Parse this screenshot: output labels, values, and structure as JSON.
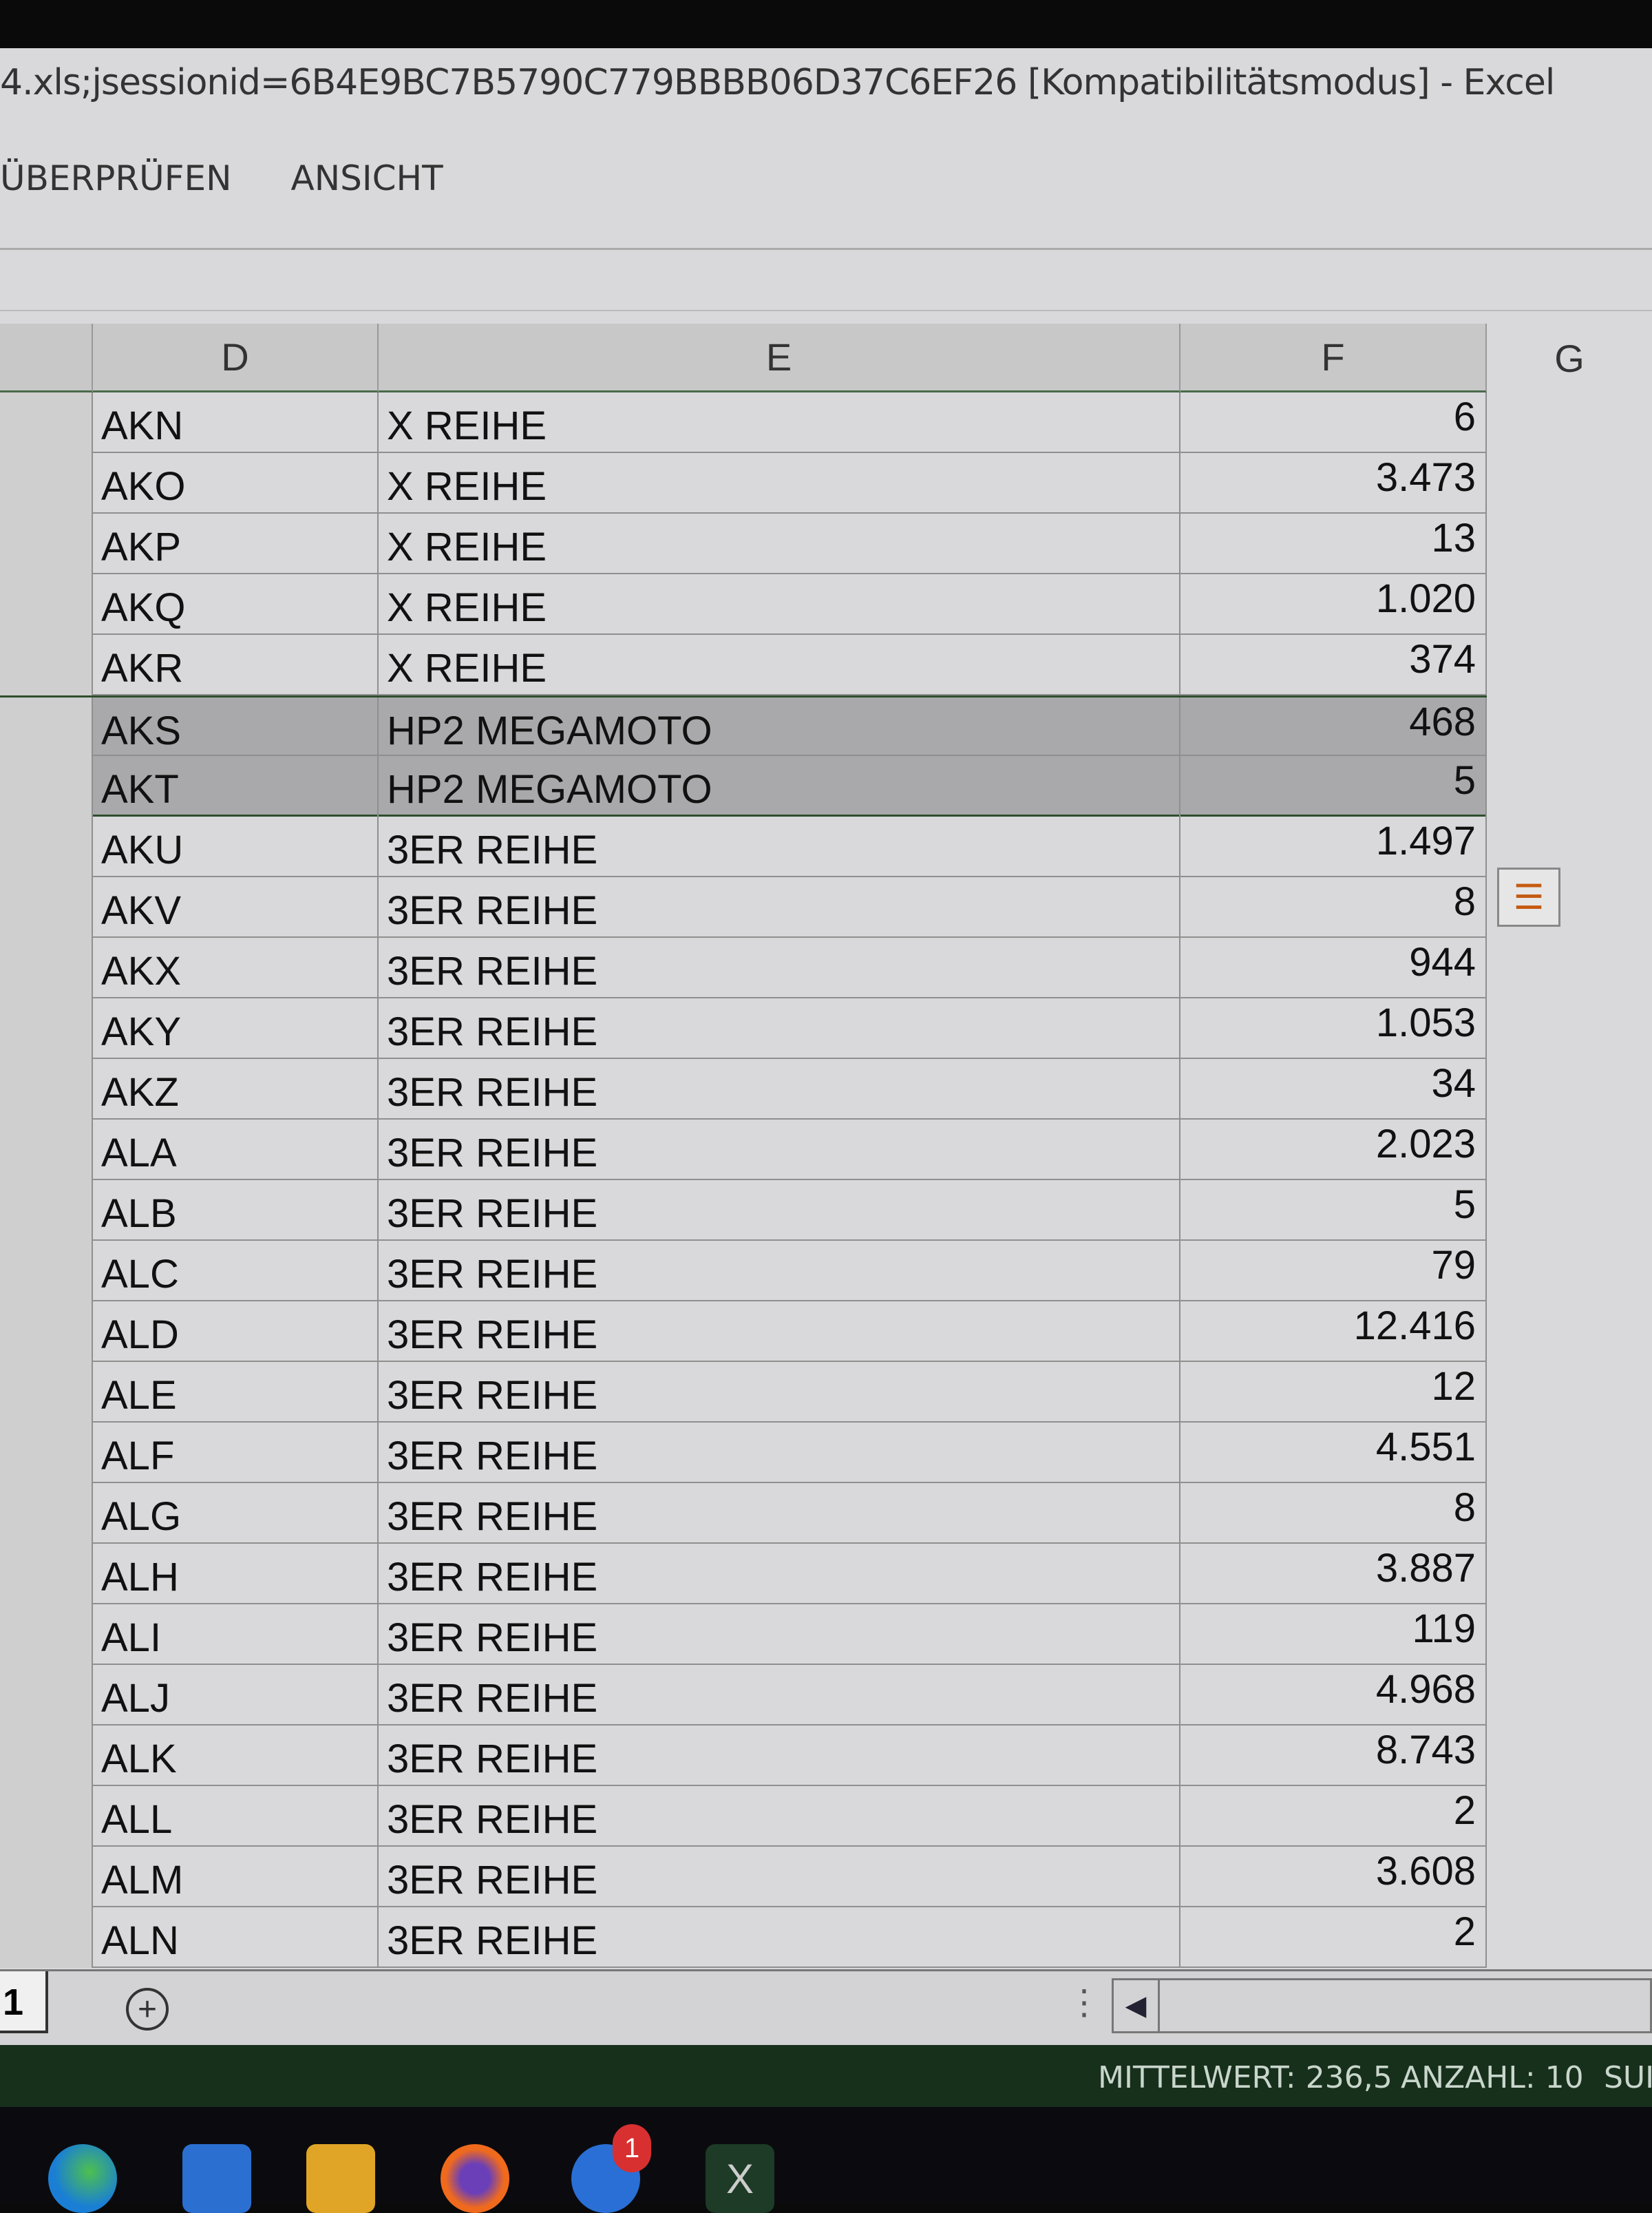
{
  "window": {
    "title": "4.xls;jsessionid=6B4E9BC7B5790C779BBBB06D37C6EF26  [Kompatibilitätsmodus] - Excel"
  },
  "ribbon": {
    "tabs": [
      "ÜBERPRÜFEN",
      "ANSICHT"
    ]
  },
  "columns": [
    "D",
    "E",
    "F",
    "G"
  ],
  "rows": [
    {
      "d": "AKN",
      "e": "X REIHE",
      "f": "6"
    },
    {
      "d": "AKO",
      "e": "X REIHE",
      "f": "3.473"
    },
    {
      "d": "AKP",
      "e": "X REIHE",
      "f": "13"
    },
    {
      "d": "AKQ",
      "e": "X REIHE",
      "f": "1.020"
    },
    {
      "d": "AKR",
      "e": "X REIHE",
      "f": "374"
    },
    {
      "d": "AKS",
      "e": "HP2 MEGAMOTO",
      "f": "468",
      "selected": true
    },
    {
      "d": "AKT",
      "e": "HP2 MEGAMOTO",
      "f": "5",
      "selected": true
    },
    {
      "d": "AKU",
      "e": "3ER REIHE",
      "f": "1.497"
    },
    {
      "d": "AKV",
      "e": "3ER REIHE",
      "f": "8"
    },
    {
      "d": "AKX",
      "e": "3ER REIHE",
      "f": "944"
    },
    {
      "d": "AKY",
      "e": "3ER REIHE",
      "f": "1.053"
    },
    {
      "d": "AKZ",
      "e": "3ER REIHE",
      "f": "34"
    },
    {
      "d": "ALA",
      "e": "3ER REIHE",
      "f": "2.023"
    },
    {
      "d": "ALB",
      "e": "3ER REIHE",
      "f": "5"
    },
    {
      "d": "ALC",
      "e": "3ER REIHE",
      "f": "79"
    },
    {
      "d": "ALD",
      "e": "3ER REIHE",
      "f": "12.416"
    },
    {
      "d": "ALE",
      "e": "3ER REIHE",
      "f": "12"
    },
    {
      "d": "ALF",
      "e": "3ER REIHE",
      "f": "4.551"
    },
    {
      "d": "ALG",
      "e": "3ER REIHE",
      "f": "8"
    },
    {
      "d": "ALH",
      "e": "3ER REIHE",
      "f": "3.887"
    },
    {
      "d": "ALI",
      "e": "3ER REIHE",
      "f": "119"
    },
    {
      "d": "ALJ",
      "e": "3ER REIHE",
      "f": "4.968"
    },
    {
      "d": "ALK",
      "e": "3ER REIHE",
      "f": "8.743"
    },
    {
      "d": "ALL",
      "e": "3ER REIHE",
      "f": "2"
    },
    {
      "d": "ALM",
      "e": "3ER REIHE",
      "f": "3.608"
    },
    {
      "d": "ALN",
      "e": "3ER REIHE",
      "f": "2"
    }
  ],
  "sheet": {
    "tab_label": "1",
    "add_icon": "plus-circle-icon"
  },
  "status": {
    "mittelwert": "MITTELWERT: 236,5",
    "anzahl": "ANZAHL: 10",
    "summe": "SUI"
  },
  "taskbar": {
    "apps": [
      "edge",
      "calendar",
      "file-explorer",
      "firefox",
      "thunderbird",
      "excel"
    ],
    "thunderbird_badge": "1",
    "excel_label": "X"
  },
  "colors": {
    "status_bar": "#17301c",
    "selection": "#a9a9ab"
  }
}
